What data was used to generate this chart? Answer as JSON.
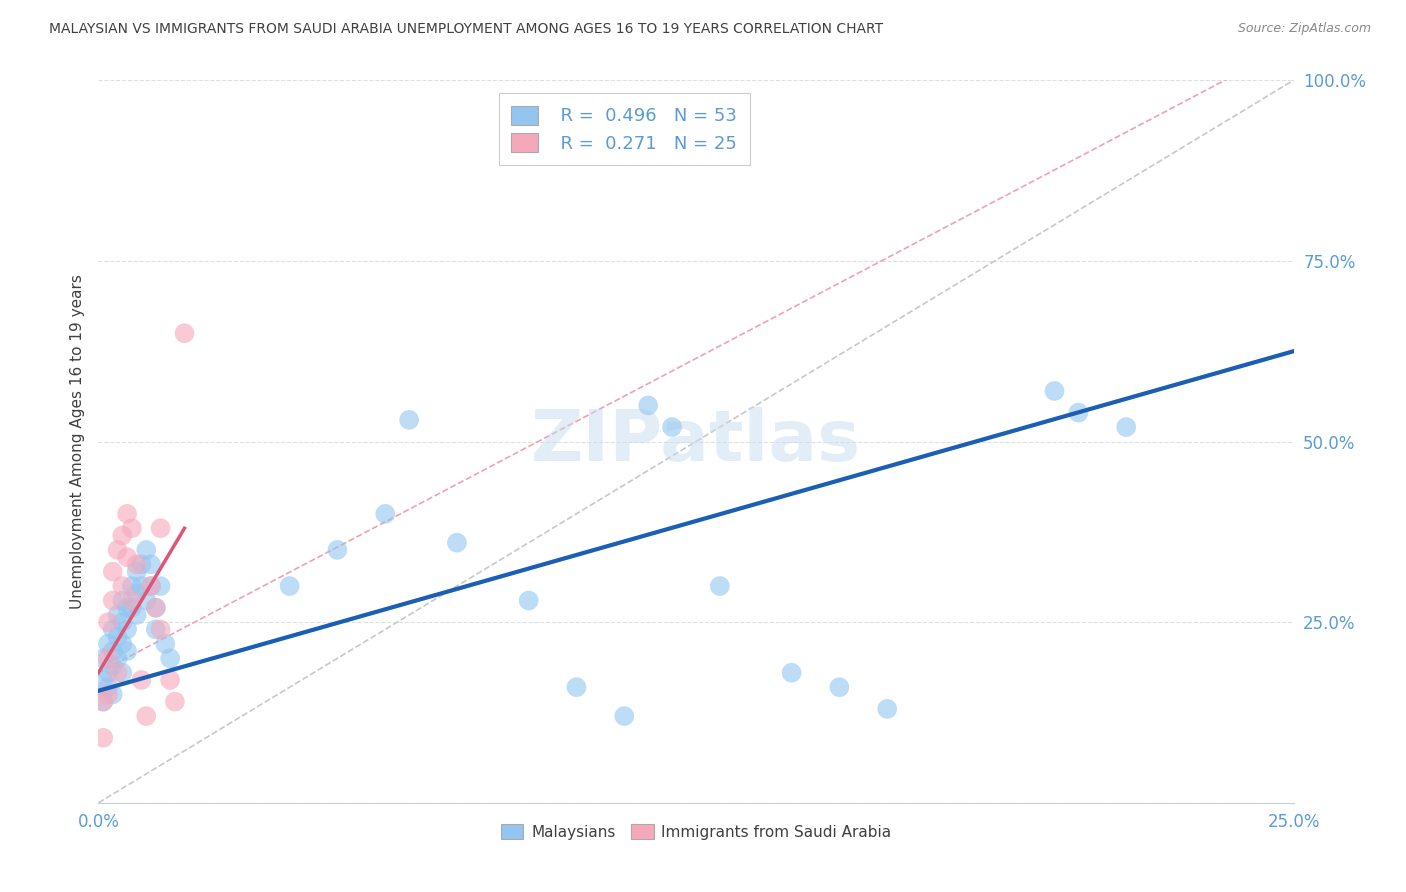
{
  "title": "MALAYSIAN VS IMMIGRANTS FROM SAUDI ARABIA UNEMPLOYMENT AMONG AGES 16 TO 19 YEARS CORRELATION CHART",
  "source": "Source: ZipAtlas.com",
  "ylabel": "Unemployment Among Ages 16 to 19 years",
  "xlim": [
    0.0,
    0.25
  ],
  "ylim": [
    0.0,
    1.0
  ],
  "blue_R": 0.496,
  "blue_N": 53,
  "pink_R": 0.271,
  "pink_N": 25,
  "blue_color": "#92c5f0",
  "pink_color": "#f5a8bc",
  "blue_line_color": "#1a5fb4",
  "pink_line_color": "#e05575",
  "pink_dash_color": "#f0a0b8",
  "diagonal_color": "#c8c8c8",
  "background_color": "#ffffff",
  "grid_color": "#e0e0e0",
  "tick_color": "#5b9bd5",
  "title_color": "#404040",
  "ylabel_color": "#404040",
  "source_color": "#888888",
  "watermark_color": "#c8ddf0",
  "blue_x": [
    0.001,
    0.001,
    0.001,
    0.002,
    0.002,
    0.002,
    0.003,
    0.003,
    0.003,
    0.003,
    0.004,
    0.004,
    0.004,
    0.005,
    0.005,
    0.005,
    0.005,
    0.006,
    0.006,
    0.006,
    0.007,
    0.007,
    0.008,
    0.008,
    0.008,
    0.009,
    0.009,
    0.01,
    0.01,
    0.011,
    0.011,
    0.012,
    0.012,
    0.013,
    0.014,
    0.015,
    0.04,
    0.05,
    0.06,
    0.065,
    0.075,
    0.09,
    0.1,
    0.11,
    0.115,
    0.12,
    0.13,
    0.145,
    0.155,
    0.165,
    0.2,
    0.205,
    0.215
  ],
  "blue_y": [
    0.17,
    0.2,
    0.14,
    0.22,
    0.18,
    0.16,
    0.24,
    0.21,
    0.19,
    0.15,
    0.26,
    0.23,
    0.2,
    0.28,
    0.25,
    0.22,
    0.18,
    0.27,
    0.24,
    0.21,
    0.3,
    0.27,
    0.32,
    0.29,
    0.26,
    0.33,
    0.3,
    0.35,
    0.28,
    0.33,
    0.3,
    0.27,
    0.24,
    0.3,
    0.22,
    0.2,
    0.3,
    0.35,
    0.4,
    0.53,
    0.36,
    0.28,
    0.16,
    0.12,
    0.55,
    0.52,
    0.3,
    0.18,
    0.16,
    0.13,
    0.57,
    0.54,
    0.52
  ],
  "pink_x": [
    0.001,
    0.001,
    0.002,
    0.002,
    0.002,
    0.003,
    0.003,
    0.004,
    0.004,
    0.005,
    0.005,
    0.006,
    0.006,
    0.007,
    0.007,
    0.008,
    0.009,
    0.01,
    0.011,
    0.012,
    0.013,
    0.013,
    0.015,
    0.016,
    0.018
  ],
  "pink_y": [
    0.14,
    0.09,
    0.25,
    0.2,
    0.15,
    0.32,
    0.28,
    0.35,
    0.18,
    0.37,
    0.3,
    0.4,
    0.34,
    0.38,
    0.28,
    0.33,
    0.17,
    0.12,
    0.3,
    0.27,
    0.24,
    0.38,
    0.17,
    0.14,
    0.65
  ],
  "blue_trend": [
    0.0,
    0.25,
    0.155,
    0.625
  ],
  "pink_trend_solid": [
    0.0,
    0.018,
    0.18,
    0.38
  ],
  "pink_trend_dash": [
    0.0,
    0.25,
    0.18,
    1.05
  ]
}
